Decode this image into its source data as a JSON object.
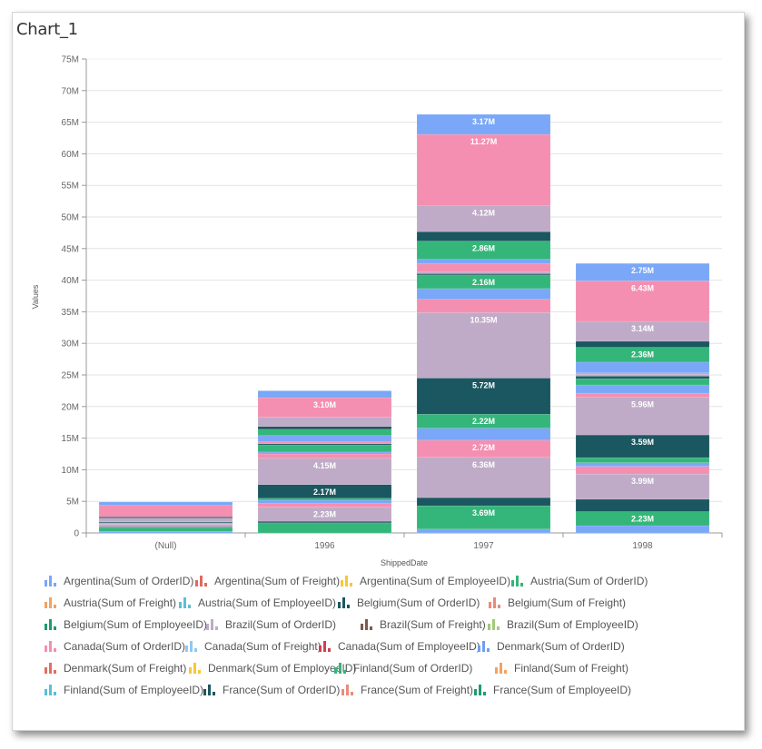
{
  "panel": {
    "title": "Chart_1"
  },
  "chart_data": {
    "type": "bar",
    "stacked": true,
    "title": "Chart_1",
    "xlabel": "ShippedDate",
    "ylabel": "Values",
    "ylim": [
      0,
      75000000
    ],
    "yticks": [
      "0",
      "5M",
      "10M",
      "15M",
      "20M",
      "25M",
      "30M",
      "35M",
      "40M",
      "45M",
      "50M",
      "55M",
      "60M",
      "65M",
      "70M",
      "75M"
    ],
    "categories": [
      "(Null)",
      "1996",
      "1997",
      "1998"
    ],
    "grid": true,
    "legend_position": "bottom",
    "colors": {
      "blue": "#7aa7f7",
      "green": "#34b67a",
      "teal": "#1b5760",
      "mauve": "#bfabc7",
      "pink": "#f48fb1"
    },
    "stacks": [
      {
        "category": "(Null)",
        "segments": [
          {
            "color": "blue",
            "value": 0.25,
            "label": ""
          },
          {
            "color": "green",
            "value": 0.6,
            "label": ""
          },
          {
            "color": "teal",
            "value": 0.1,
            "label": ""
          },
          {
            "color": "mauve",
            "value": 0.45,
            "label": ""
          },
          {
            "color": "pink",
            "value": 0.2,
            "label": ""
          },
          {
            "color": "teal",
            "value": 0.15,
            "label": ""
          },
          {
            "color": "mauve",
            "value": 0.6,
            "label": ""
          },
          {
            "color": "teal",
            "value": 0.2,
            "label": ""
          },
          {
            "color": "pink",
            "value": 1.8,
            "label": ""
          },
          {
            "color": "blue",
            "value": 0.55,
            "label": ""
          }
        ]
      },
      {
        "category": "1996",
        "segments": [
          {
            "color": "green",
            "value": 1.6,
            "label": ""
          },
          {
            "color": "teal",
            "value": 0.25,
            "label": ""
          },
          {
            "color": "mauve",
            "value": 2.23,
            "label": "2.23M"
          },
          {
            "color": "pink",
            "value": 0.6,
            "label": ""
          },
          {
            "color": "blue",
            "value": 0.5,
            "label": ""
          },
          {
            "color": "green",
            "value": 0.3,
            "label": ""
          },
          {
            "color": "teal",
            "value": 2.17,
            "label": "2.17M"
          },
          {
            "color": "mauve",
            "value": 4.15,
            "label": "4.15M"
          },
          {
            "color": "pink",
            "value": 0.7,
            "label": ""
          },
          {
            "color": "blue",
            "value": 0.3,
            "label": ""
          },
          {
            "color": "green",
            "value": 1.1,
            "label": ""
          },
          {
            "color": "teal",
            "value": 0.2,
            "label": ""
          },
          {
            "color": "pink",
            "value": 0.3,
            "label": ""
          },
          {
            "color": "blue",
            "value": 1.0,
            "label": ""
          },
          {
            "color": "green",
            "value": 1.0,
            "label": ""
          },
          {
            "color": "teal",
            "value": 0.45,
            "label": ""
          },
          {
            "color": "mauve",
            "value": 1.45,
            "label": ""
          },
          {
            "color": "pink",
            "value": 3.1,
            "label": "3.10M"
          },
          {
            "color": "blue",
            "value": 1.1,
            "label": ""
          }
        ]
      },
      {
        "category": "1997",
        "segments": [
          {
            "color": "blue",
            "value": 0.6,
            "label": ""
          },
          {
            "color": "green",
            "value": 3.69,
            "label": "3.69M"
          },
          {
            "color": "teal",
            "value": 1.3,
            "label": ""
          },
          {
            "color": "mauve",
            "value": 6.36,
            "label": "6.36M"
          },
          {
            "color": "pink",
            "value": 2.72,
            "label": "2.72M"
          },
          {
            "color": "blue",
            "value": 1.9,
            "label": ""
          },
          {
            "color": "green",
            "value": 2.22,
            "label": "2.22M"
          },
          {
            "color": "teal",
            "value": 5.72,
            "label": "5.72M"
          },
          {
            "color": "mauve",
            "value": 10.35,
            "label": "10.35M"
          },
          {
            "color": "pink",
            "value": 2.1,
            "label": ""
          },
          {
            "color": "blue",
            "value": 1.7,
            "label": ""
          },
          {
            "color": "green",
            "value": 2.16,
            "label": "2.16M"
          },
          {
            "color": "teal",
            "value": 0.2,
            "label": ""
          },
          {
            "color": "mauve",
            "value": 0.3,
            "label": ""
          },
          {
            "color": "pink",
            "value": 1.3,
            "label": ""
          },
          {
            "color": "blue",
            "value": 0.7,
            "label": ""
          },
          {
            "color": "green",
            "value": 2.86,
            "label": "2.86M"
          },
          {
            "color": "teal",
            "value": 1.5,
            "label": ""
          },
          {
            "color": "mauve",
            "value": 4.12,
            "label": "4.12M"
          },
          {
            "color": "pink",
            "value": 11.27,
            "label": "11.27M"
          },
          {
            "color": "blue",
            "value": 3.17,
            "label": "3.17M"
          }
        ]
      },
      {
        "category": "1998",
        "segments": [
          {
            "color": "blue",
            "value": 1.15,
            "label": ""
          },
          {
            "color": "green",
            "value": 2.23,
            "label": "2.23M"
          },
          {
            "color": "teal",
            "value": 1.95,
            "label": ""
          },
          {
            "color": "mauve",
            "value": 3.99,
            "label": "3.99M"
          },
          {
            "color": "pink",
            "value": 1.2,
            "label": ""
          },
          {
            "color": "blue",
            "value": 0.6,
            "label": ""
          },
          {
            "color": "green",
            "value": 0.8,
            "label": ""
          },
          {
            "color": "teal",
            "value": 3.59,
            "label": "3.59M"
          },
          {
            "color": "mauve",
            "value": 5.96,
            "label": "5.96M"
          },
          {
            "color": "pink",
            "value": 0.65,
            "label": ""
          },
          {
            "color": "blue",
            "value": 1.3,
            "label": ""
          },
          {
            "color": "green",
            "value": 1.0,
            "label": ""
          },
          {
            "color": "teal",
            "value": 0.4,
            "label": ""
          },
          {
            "color": "mauve",
            "value": 0.3,
            "label": ""
          },
          {
            "color": "pink",
            "value": 0.2,
            "label": ""
          },
          {
            "color": "blue",
            "value": 1.7,
            "label": ""
          },
          {
            "color": "green",
            "value": 2.36,
            "label": "2.36M"
          },
          {
            "color": "teal",
            "value": 0.95,
            "label": ""
          },
          {
            "color": "mauve",
            "value": 3.14,
            "label": "3.14M"
          },
          {
            "color": "pink",
            "value": 6.43,
            "label": "6.43M"
          },
          {
            "color": "blue",
            "value": 2.75,
            "label": "2.75M"
          }
        ]
      }
    ],
    "legend": [
      {
        "label": "Argentina(Sum of OrderID)",
        "color": "#7aa7f7"
      },
      {
        "label": "Argentina(Sum of Freight)",
        "color": "#e06a5f"
      },
      {
        "label": "Argentina(Sum of EmployeeID)",
        "color": "#f8c63a"
      },
      {
        "label": "Austria(Sum of OrderID)",
        "color": "#34b67a"
      },
      {
        "label": "Austria(Sum of Freight)",
        "color": "#f4a261"
      },
      {
        "label": "Austria(Sum of EmployeeID)",
        "color": "#5bbfd6"
      },
      {
        "label": "Belgium(Sum of OrderID)",
        "color": "#1b5760"
      },
      {
        "label": "Belgium(Sum of Freight)",
        "color": "#ec8a7a"
      },
      {
        "label": "Belgium(Sum of EmployeeID)",
        "color": "#1f9b6e"
      },
      {
        "label": "Brazil(Sum of OrderID)",
        "color": "#bfabc7"
      },
      {
        "label": "Brazil(Sum of Freight)",
        "color": "#7d5a50"
      },
      {
        "label": "Brazil(Sum of EmployeeID)",
        "color": "#a3c97a"
      },
      {
        "label": "Canada(Sum of OrderID)",
        "color": "#f48fb1"
      },
      {
        "label": "Canada(Sum of Freight)",
        "color": "#8fc8f2"
      },
      {
        "label": "Canada(Sum of EmployeeID)",
        "color": "#d0404f"
      },
      {
        "label": "Denmark(Sum of OrderID)",
        "color": "#6f9ef0"
      },
      {
        "label": "Denmark(Sum of Freight)",
        "color": "#e0705f"
      },
      {
        "label": "Denmark(Sum of EmployeeID)",
        "color": "#f8c63a"
      },
      {
        "label": "Finland(Sum of OrderID)",
        "color": "#34b67a"
      },
      {
        "label": "Finland(Sum of Freight)",
        "color": "#f4a261"
      },
      {
        "label": "Finland(Sum of EmployeeID)",
        "color": "#5bbfd6"
      },
      {
        "label": "France(Sum of OrderID)",
        "color": "#1b5760"
      },
      {
        "label": "France(Sum of Freight)",
        "color": "#ec8a7a"
      },
      {
        "label": "France(Sum of EmployeeID)",
        "color": "#1f9b6e"
      }
    ]
  }
}
